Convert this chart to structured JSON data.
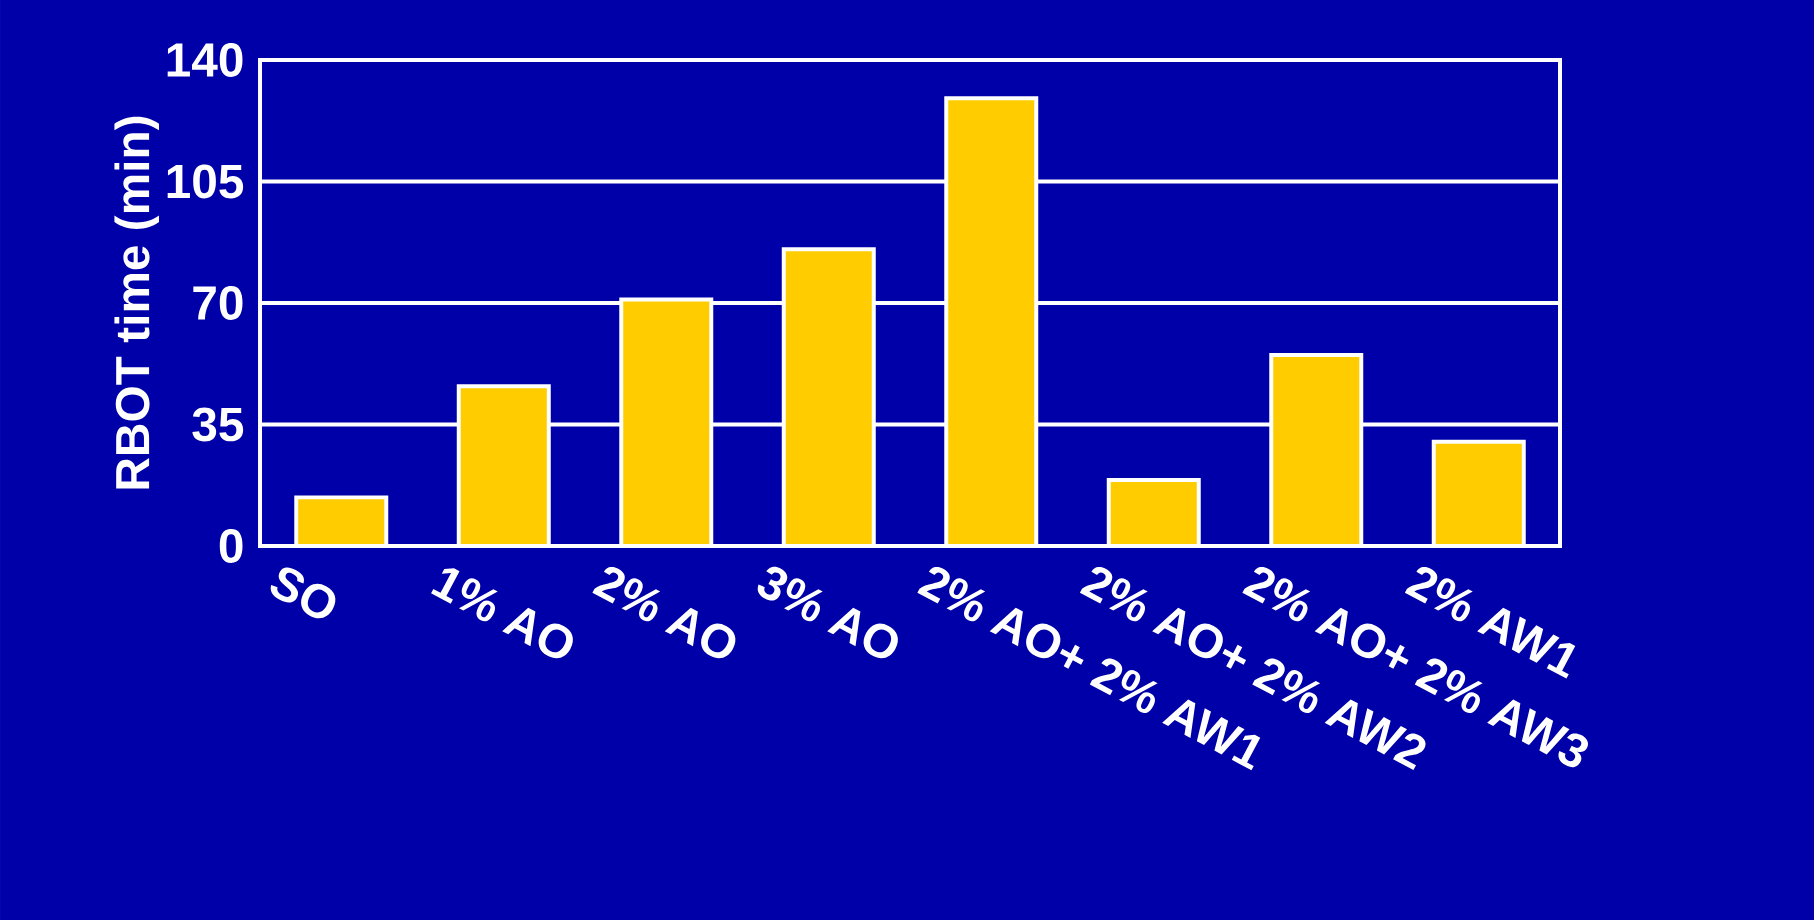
{
  "chart_data": {
    "type": "bar",
    "ylabel": "RBOT time (min)",
    "categories": [
      "SO",
      "1% AO",
      "2% AO",
      "3% AO",
      "2% AO+ 2% AW1",
      "2% AO+ 2% AW2",
      "2% AO+ 2% AW3",
      "2% AW1"
    ],
    "values": [
      14,
      46,
      71,
      85.5,
      129,
      19,
      55,
      30
    ],
    "color": "#ffcc00",
    "ylim": [
      0,
      140
    ],
    "yticks": [
      0,
      35,
      70,
      105,
      140
    ],
    "grid": "y"
  }
}
